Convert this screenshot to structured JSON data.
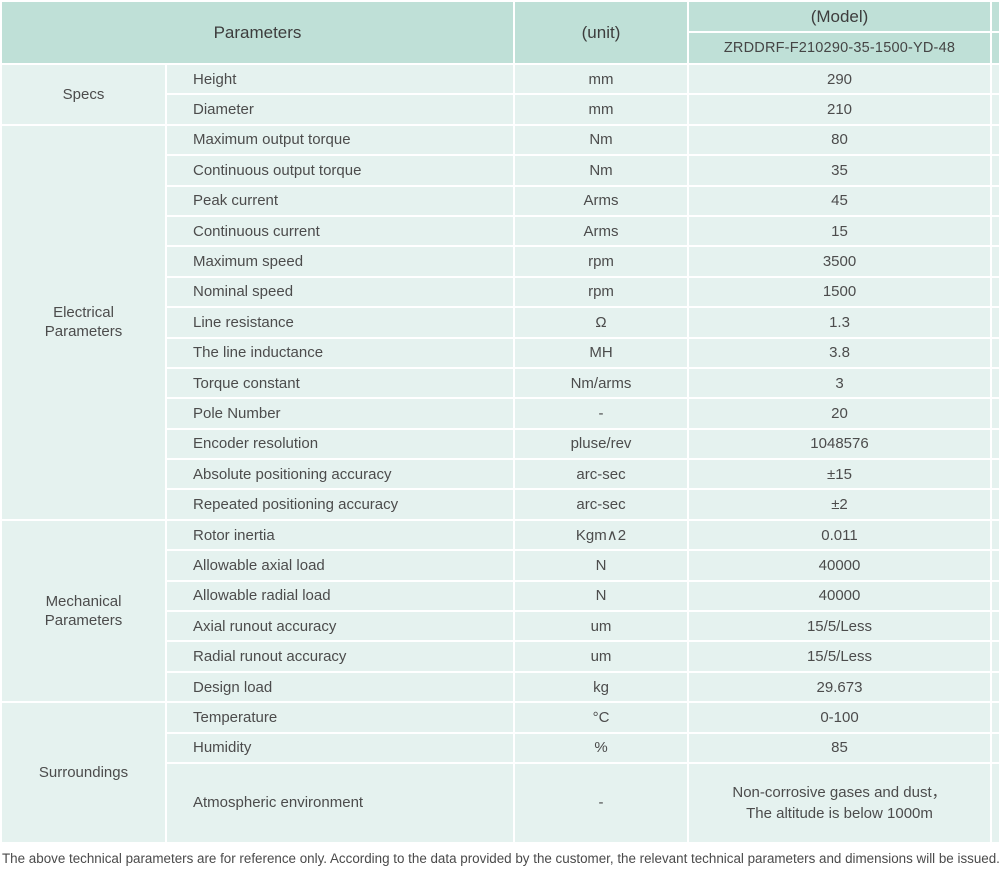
{
  "colors": {
    "header_bg": "#bfe0d7",
    "body_bg": "#e5f2ef",
    "border": "#ffffff",
    "body_text": "#4c4c4c",
    "header_text": "#3d3d3d"
  },
  "header": {
    "parameters_label": "Parameters",
    "unit_label": "(unit)",
    "model_label": "(Model)",
    "model_value": "ZRDDRF-F210290-35-1500-YD-48"
  },
  "table": {
    "sections": [
      {
        "category": "Specs",
        "rows": [
          {
            "parameter": "Height",
            "unit": "mm",
            "value": "290"
          },
          {
            "parameter": "Diameter",
            "unit": "mm",
            "value": "210"
          }
        ]
      },
      {
        "category": "Electrical Parameters",
        "rows": [
          {
            "parameter": "Maximum output torque",
            "unit": "Nm",
            "value": "80"
          },
          {
            "parameter": "Continuous output torque",
            "unit": "Nm",
            "value": "35"
          },
          {
            "parameter": "Peak current",
            "unit": "Arms",
            "value": "45"
          },
          {
            "parameter": "Continuous current",
            "unit": "Arms",
            "value": "15"
          },
          {
            "parameter": "Maximum speed",
            "unit": "rpm",
            "value": "3500"
          },
          {
            "parameter": "Nominal speed",
            "unit": "rpm",
            "value": "1500"
          },
          {
            "parameter": "Line resistance",
            "unit": "Ω",
            "value": "1.3"
          },
          {
            "parameter": "The line inductance",
            "unit": "MH",
            "value": "3.8"
          },
          {
            "parameter": "Torque constant",
            "unit": "Nm/arms",
            "value": "3"
          },
          {
            "parameter": "Pole Number",
            "unit": "-",
            "value": "20"
          },
          {
            "parameter": "Encoder resolution",
            "unit": "pluse/rev",
            "value": "1048576"
          },
          {
            "parameter": "Absolute positioning accuracy",
            "unit": "arc-sec",
            "value": "±15"
          },
          {
            "parameter": "Repeated positioning accuracy",
            "unit": "arc-sec",
            "value": "±2"
          }
        ]
      },
      {
        "category": "Mechanical Parameters",
        "rows": [
          {
            "parameter": "Rotor inertia",
            "unit": "Kgm∧2",
            "value": "0.011"
          },
          {
            "parameter": "Allowable axial load",
            "unit": "N",
            "value": "40000"
          },
          {
            "parameter": "Allowable radial load",
            "unit": "N",
            "value": "40000"
          },
          {
            "parameter": "Axial runout accuracy",
            "unit": "um",
            "value": "15/5/Less"
          },
          {
            "parameter": "Radial runout accuracy",
            "unit": "um",
            "value": "15/5/Less"
          },
          {
            "parameter": "Design load",
            "unit": "kg",
            "value": "29.673"
          }
        ]
      },
      {
        "category": "Surroundings",
        "rows": [
          {
            "parameter": "Temperature",
            "unit": "°C",
            "value": "0-100"
          },
          {
            "parameter": "Humidity",
            "unit": "%",
            "value": "85"
          },
          {
            "parameter": "Atmospheric environment",
            "unit": "-",
            "value": "Non-corrosive gases and dust，\nThe altitude is below 1000m",
            "tall": true
          }
        ]
      }
    ]
  },
  "footer": {
    "note": "The above technical parameters are for reference only. According to the data provided by the customer, the relevant technical parameters and dimensions will be issued."
  }
}
